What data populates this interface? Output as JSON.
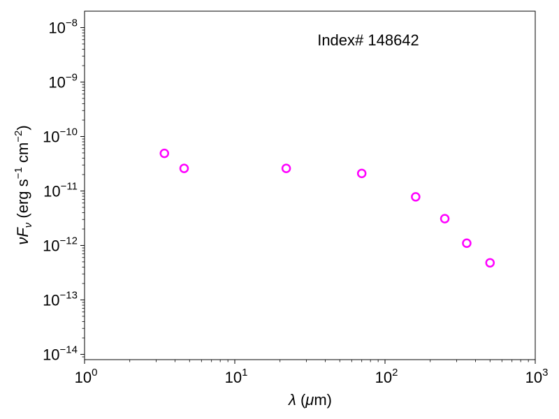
{
  "chart_data": {
    "type": "scatter",
    "annotation": "Index# 148642",
    "xlabel": "λ (μm)",
    "ylabel": "νF_ν (erg s⁻¹ cm⁻²)",
    "xscale": "log",
    "yscale": "log",
    "xlim": [
      1,
      1000
    ],
    "ylim": [
      8e-15,
      2e-08
    ],
    "xticks": [
      {
        "value": 1,
        "base": "10",
        "exp": "0"
      },
      {
        "value": 10,
        "base": "10",
        "exp": "1"
      },
      {
        "value": 100,
        "base": "10",
        "exp": "2"
      },
      {
        "value": 1000,
        "base": "10",
        "exp": "3"
      }
    ],
    "yticks": [
      {
        "value": 1e-14,
        "base": "10",
        "exp": "−14"
      },
      {
        "value": 1e-13,
        "base": "10",
        "exp": "−13"
      },
      {
        "value": 1e-12,
        "base": "10",
        "exp": "−12"
      },
      {
        "value": 1e-11,
        "base": "10",
        "exp": "−11"
      },
      {
        "value": 1e-10,
        "base": "10",
        "exp": "−10"
      },
      {
        "value": 1e-09,
        "base": "10",
        "exp": "−9"
      },
      {
        "value": 1e-08,
        "base": "10",
        "exp": "−8"
      }
    ],
    "grid": false,
    "marker_color": "#ff00ff",
    "points": [
      {
        "x": 3.4,
        "y": 4.9e-11
      },
      {
        "x": 4.6,
        "y": 2.6e-11
      },
      {
        "x": 22,
        "y": 2.6e-11
      },
      {
        "x": 70,
        "y": 2.1e-11
      },
      {
        "x": 160,
        "y": 7.8e-12
      },
      {
        "x": 250,
        "y": 3.1e-12
      },
      {
        "x": 350,
        "y": 1.1e-12
      },
      {
        "x": 500,
        "y": 4.8e-13
      }
    ]
  }
}
